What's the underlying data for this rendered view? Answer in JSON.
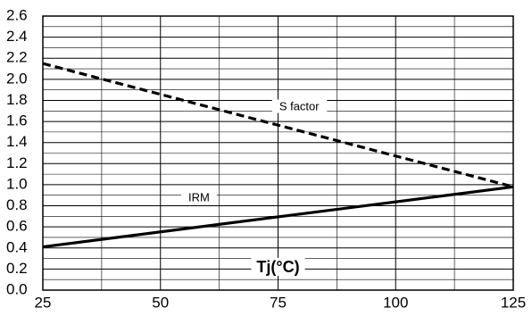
{
  "chart_data": {
    "type": "line",
    "xlabel": "Tj(°C)",
    "ylabel": "",
    "xlim": [
      25,
      125
    ],
    "ylim": [
      0.0,
      2.6
    ],
    "x_ticks": [
      "25",
      "50",
      "75",
      "100",
      "125"
    ],
    "y_ticks": [
      "0.0",
      "0.2",
      "0.4",
      "0.6",
      "0.8",
      "1.0",
      "1.2",
      "1.4",
      "1.6",
      "1.8",
      "2.0",
      "2.2",
      "2.4",
      "2.6"
    ],
    "grid": true,
    "series": [
      {
        "name": "S factor",
        "style": "dashed",
        "color": "#000000",
        "x": [
          25,
          125
        ],
        "y": [
          2.15,
          0.98
        ]
      },
      {
        "name": "IRM",
        "style": "solid",
        "color": "#000000",
        "x": [
          25,
          125
        ],
        "y": [
          0.41,
          0.98
        ]
      }
    ]
  }
}
